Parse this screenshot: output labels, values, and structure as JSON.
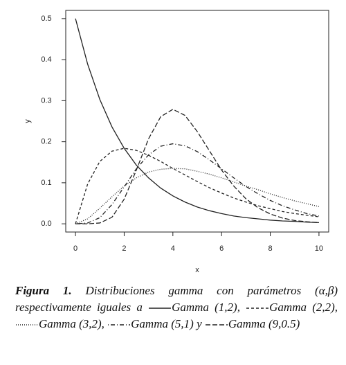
{
  "chart_data": {
    "type": "line",
    "xlabel": "x",
    "ylabel": "y",
    "x": [
      0,
      0.5,
      1,
      1.5,
      2,
      2.5,
      3,
      3.5,
      4,
      4.5,
      5,
      5.5,
      6,
      6.5,
      7,
      7.5,
      8,
      8.5,
      9,
      9.5,
      10
    ],
    "series": [
      {
        "name": "Gamma (1,2)",
        "color": "#222222",
        "dash": "solid",
        "values": [
          0.5,
          0.389,
          0.303,
          0.236,
          0.184,
          0.143,
          0.112,
          0.087,
          0.068,
          0.053,
          0.041,
          0.032,
          0.025,
          0.019,
          0.015,
          0.012,
          0.009,
          0.007,
          0.006,
          0.004,
          0.003
        ]
      },
      {
        "name": "Gamma (2,2)",
        "color": "#222222",
        "dash": "dashed",
        "values": [
          0,
          0.097,
          0.152,
          0.177,
          0.184,
          0.179,
          0.167,
          0.152,
          0.135,
          0.119,
          0.103,
          0.088,
          0.075,
          0.063,
          0.053,
          0.044,
          0.037,
          0.03,
          0.025,
          0.021,
          0.017
        ]
      },
      {
        "name": "Gamma (3,2)",
        "color": "#222222",
        "dash": "dotted",
        "values": [
          0,
          0.012,
          0.038,
          0.066,
          0.092,
          0.112,
          0.126,
          0.133,
          0.135,
          0.134,
          0.128,
          0.121,
          0.112,
          0.102,
          0.092,
          0.083,
          0.073,
          0.064,
          0.056,
          0.049,
          0.042
        ]
      },
      {
        "name": "Gamma (5,1)",
        "color": "#222222",
        "dash": "dotdash",
        "values": [
          0,
          0.002,
          0.015,
          0.047,
          0.09,
          0.134,
          0.168,
          0.189,
          0.195,
          0.19,
          0.176,
          0.156,
          0.134,
          0.112,
          0.091,
          0.073,
          0.057,
          0.044,
          0.034,
          0.025,
          0.019
        ]
      },
      {
        "name": "Gamma (9,0.5)",
        "color": "#222222",
        "dash": "longdash",
        "values": [
          0,
          2e-05,
          0.002,
          0.016,
          0.06,
          0.131,
          0.207,
          0.261,
          0.279,
          0.264,
          0.225,
          0.178,
          0.131,
          0.092,
          0.061,
          0.039,
          0.024,
          0.014,
          0.008,
          0.005,
          0.003
        ]
      }
    ],
    "xlim": [
      -0.4,
      10.4
    ],
    "ylim": [
      -0.02,
      0.52
    ],
    "xticks": [
      0,
      2,
      4,
      6,
      8,
      10
    ],
    "yticks": [
      {
        "value": 0,
        "label": "0.0"
      },
      0.1,
      0.2,
      0.3,
      0.4,
      0.5
    ],
    "grid": false,
    "caption": {
      "label": "Figura 1.",
      "text": "Distribuciones gamma con parámetros (α,β) respectivamente iguales a",
      "joins": [
        ",",
        ",",
        ",",
        "y"
      ]
    }
  }
}
